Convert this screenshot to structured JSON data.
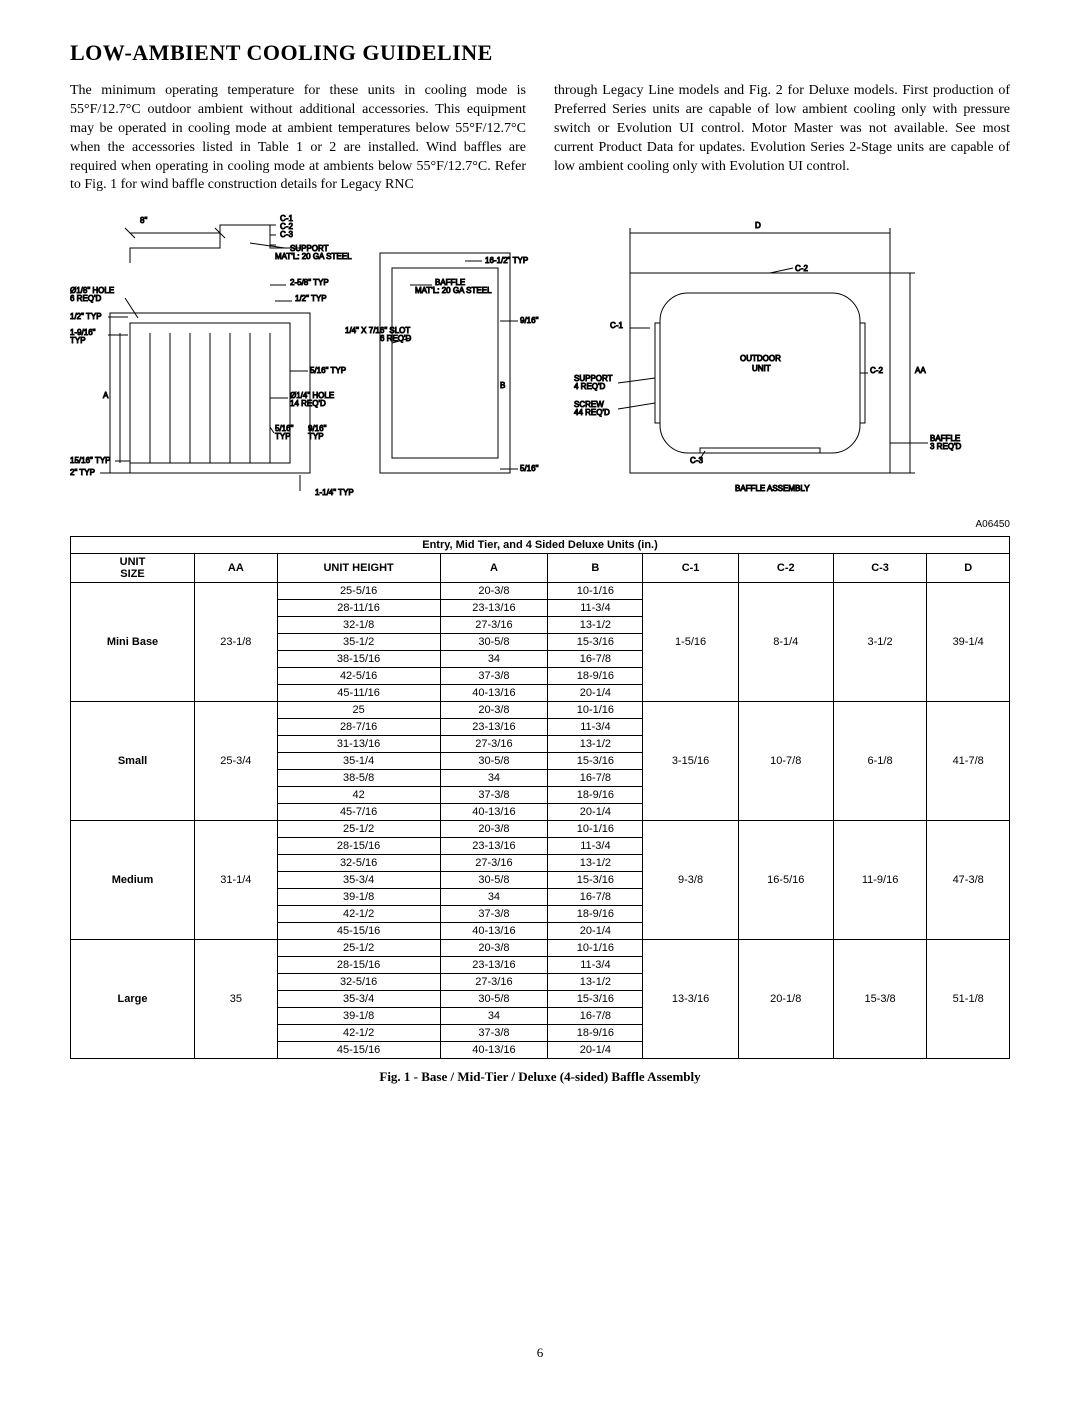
{
  "title": "LOW-AMBIENT COOLING GUIDELINE",
  "para_left": "The minimum operating temperature for these units in cooling mode is 55°F/12.7°C outdoor ambient without additional accessories. This equipment may be operated in cooling mode at ambient temperatures below 55°F/12.7°C when the accessories listed in Table 1 or 2 are installed. Wind baffles are required when operating in cooling mode at ambients below 55°F/12.7°C. Refer to Fig. 1 for  wind baffle construction details for Legacy RNC",
  "para_right": "through Legacy Line models and Fig. 2 for Deluxe models. First production of Preferred Series  units are capable of low ambient cooling only with pressure switch or Evolution UI control. Motor Master was not available. See most current Product Data for updates. Evolution Series 2-Stage units are capable of low ambient cooling only with Evolution UI control.",
  "diagram_id": "A06450",
  "diagram_left_labels": {
    "eight_in": "8\"",
    "c123": "C-1\nC-2\nC-3",
    "support": "SUPPORT\nMAT'L: 20 GA STEEL",
    "sixteen_half": "16-1/2\" TYP",
    "hole18": "Ø1/8\" HOLE\n6 REQ'D",
    "two58": "2-5/8\" TYP",
    "half_typ": "1/2\" TYP",
    "half_typ2": "1/2\" TYP",
    "nine16": "9/16\" TYP",
    "one916": "1-9/16\"\nTYP",
    "slot": "1/4\" X 7/16\" SLOT\n6 REQ'D",
    "five16": "5/16\" TYP",
    "hole14": "Ø1/4\" HOLE\n14 REQ'D",
    "five16b": "5/16\"\nTYP",
    "nine16b": "9/16\"\nTYP",
    "fifteen16": "15/16\" TYP",
    "two_typ": "2\" TYP",
    "one14": "1-1/4\" TYP",
    "five16c": "5/16\" TYP",
    "baffle_matl": "BAFFLE\nMAT'L: 20 GA STEEL"
  },
  "diagram_right_labels": {
    "d": "D",
    "c2": "C-2",
    "c1": "C-1",
    "outdoor": "OUTDOOR\nUNIT",
    "aa": "AA",
    "c2b": "C-2",
    "support4": "SUPPORT\n4 REQ'D",
    "screw44": "SCREW\n44 REQ'D",
    "c3": "C-3",
    "baffle3": "BAFFLE\n3 REQ'D",
    "assembly": "BAFFLE ASSEMBLY"
  },
  "table": {
    "title": "Entry, Mid Tier, and 4 Sided Deluxe Units (in.)",
    "columns": [
      "UNIT\nSIZE",
      "AA",
      "UNIT HEIGHT",
      "A",
      "B",
      "C-1",
      "C-2",
      "C-3",
      "D"
    ],
    "groups": [
      {
        "size": "Mini Base",
        "aa": "23-1/8",
        "c1": "1-5/16",
        "c2": "8-1/4",
        "c3": "3-1/2",
        "d": "39-1/4",
        "rows": [
          [
            "25-5/16",
            "20-3/8",
            "10-1/16"
          ],
          [
            "28-11/16",
            "23-13/16",
            "11-3/4"
          ],
          [
            "32-1/8",
            "27-3/16",
            "13-1/2"
          ],
          [
            "35-1/2",
            "30-5/8",
            "15-3/16"
          ],
          [
            "38-15/16",
            "34",
            "16-7/8"
          ],
          [
            "42-5/16",
            "37-3/8",
            "18-9/16"
          ],
          [
            "45-11/16",
            "40-13/16",
            "20-1/4"
          ]
        ]
      },
      {
        "size": "Small",
        "aa": "25-3/4",
        "c1": "3-15/16",
        "c2": "10-7/8",
        "c3": "6-1/8",
        "d": "41-7/8",
        "rows": [
          [
            "25",
            "20-3/8",
            "10-1/16"
          ],
          [
            "28-7/16",
            "23-13/16",
            "11-3/4"
          ],
          [
            "31-13/16",
            "27-3/16",
            "13-1/2"
          ],
          [
            "35-1/4",
            "30-5/8",
            "15-3/16"
          ],
          [
            "38-5/8",
            "34",
            "16-7/8"
          ],
          [
            "42",
            "37-3/8",
            "18-9/16"
          ],
          [
            "45-7/16",
            "40-13/16",
            "20-1/4"
          ]
        ]
      },
      {
        "size": "Medium",
        "aa": "31-1/4",
        "c1": "9-3/8",
        "c2": "16-5/16",
        "c3": "11-9/16",
        "d": "47-3/8",
        "rows": [
          [
            "25-1/2",
            "20-3/8",
            "10-1/16"
          ],
          [
            "28-15/16",
            "23-13/16",
            "11-3/4"
          ],
          [
            "32-5/16",
            "27-3/16",
            "13-1/2"
          ],
          [
            "35-3/4",
            "30-5/8",
            "15-3/16"
          ],
          [
            "39-1/8",
            "34",
            "16-7/8"
          ],
          [
            "42-1/2",
            "37-3/8",
            "18-9/16"
          ],
          [
            "45-15/16",
            "40-13/16",
            "20-1/4"
          ]
        ]
      },
      {
        "size": "Large",
        "aa": "35",
        "c1": "13-3/16",
        "c2": "20-1/8",
        "c3": "15-3/8",
        "d": "51-1/8",
        "rows": [
          [
            "25-1/2",
            "20-3/8",
            "10-1/16"
          ],
          [
            "28-15/16",
            "23-13/16",
            "11-3/4"
          ],
          [
            "32-5/16",
            "27-3/16",
            "13-1/2"
          ],
          [
            "35-3/4",
            "30-5/8",
            "15-3/16"
          ],
          [
            "39-1/8",
            "34",
            "16-7/8"
          ],
          [
            "42-1/2",
            "37-3/8",
            "18-9/16"
          ],
          [
            "45-15/16",
            "40-13/16",
            "20-1/4"
          ]
        ]
      }
    ]
  },
  "caption": "Fig. 1 - Base / Mid-Tier / Deluxe (4-sided) Baffle Assembly",
  "page_number": "6"
}
